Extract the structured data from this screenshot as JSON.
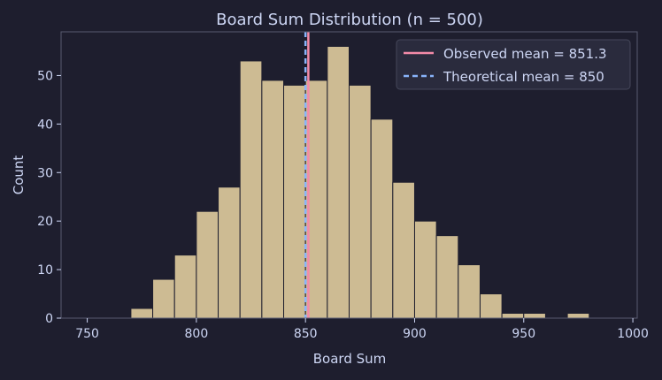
{
  "chart_data": {
    "type": "bar",
    "title": "Board Sum Distribution (n = 500)",
    "xlabel": "Board Sum",
    "ylabel": "Count",
    "xlim": [
      738,
      1002
    ],
    "ylim": [
      0,
      59
    ],
    "xticks": [
      750,
      800,
      850,
      900,
      950,
      1000
    ],
    "yticks": [
      0,
      10,
      20,
      30,
      40,
      50
    ],
    "bin_width": 10,
    "bin_starts": [
      770,
      780,
      790,
      800,
      810,
      820,
      830,
      840,
      850,
      860,
      870,
      880,
      890,
      900,
      910,
      920,
      930,
      940,
      950,
      960,
      970
    ],
    "values": [
      2,
      8,
      13,
      22,
      27,
      53,
      49,
      48,
      49,
      56,
      48,
      41,
      28,
      20,
      17,
      11,
      5,
      1,
      1,
      0,
      1
    ],
    "observed_mean": 851.3,
    "theoretical_mean": 850,
    "legend": [
      "Observed mean = 851.3",
      "Theoretical mean = 850"
    ],
    "legend_position": "top-right",
    "grid": false,
    "colors": {
      "bar": "#cdbb93",
      "observed": "#f38ba8",
      "theoretical": "#89b4fa",
      "background": "#1e1e2e",
      "text": "#cdd6f4"
    }
  }
}
